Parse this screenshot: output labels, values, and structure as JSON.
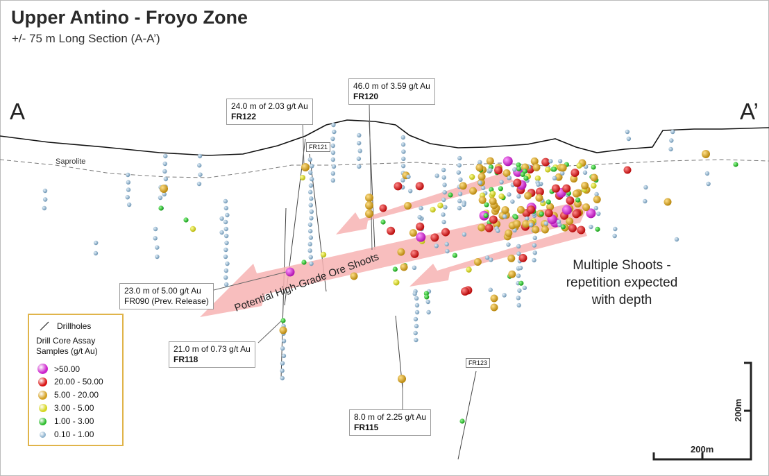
{
  "title": "Upper Antino - Froyo Zone",
  "subtitle": "+/- 75 m Long Section (A-A’)",
  "section_ends": {
    "left": "A",
    "right": "A’"
  },
  "saprolite_label": "Saprolite",
  "callouts": {
    "fr122": {
      "line1": "24.0 m of 2.03 g/t Au",
      "line2": "FR122"
    },
    "fr120": {
      "line1": "46.0 m of 3.59 g/t Au",
      "line2": "FR120"
    },
    "fr090": {
      "line1": "23.0 m of 5.00 g/t Au",
      "line2": "FR090 (Prev. Release)"
    },
    "fr118": {
      "line1": "21.0 m of 0.73 g/t Au",
      "line2": "FR118"
    },
    "fr115": {
      "line1": "8.0 m of 2.25 g/t Au",
      "line2": "FR115"
    }
  },
  "hole_tags": {
    "fr121": "FR121",
    "fr123": "FR123"
  },
  "arrow_label": "Potential High-Grade Ore Shoots",
  "note": {
    "line1": "Multiple Shoots -",
    "line2": "repetition expected",
    "line3": "with depth"
  },
  "legend": {
    "drillholes": "Drillholes",
    "heading1": "Drill Core Assay",
    "heading2": "Samples (g/t Au)",
    "classes": [
      {
        "label": ">50.00",
        "color": "#cc22cc"
      },
      {
        "label": "20.00 - 50.00",
        "color": "#d91414"
      },
      {
        "label": "5.00 - 20.00",
        "color": "#d4a020"
      },
      {
        "label": "3.00 - 5.00",
        "color": "#d6d61e"
      },
      {
        "label": "1.00 - 3.00",
        "color": "#2ebd2e"
      },
      {
        "label": "0.10 - 1.00",
        "color": "#8fb4cf"
      }
    ]
  },
  "scale": {
    "vertical": "200m",
    "horizontal": "200m"
  },
  "colors": {
    "arrow": "#f7b3b3",
    "legend_border": "#e0b44a"
  }
}
